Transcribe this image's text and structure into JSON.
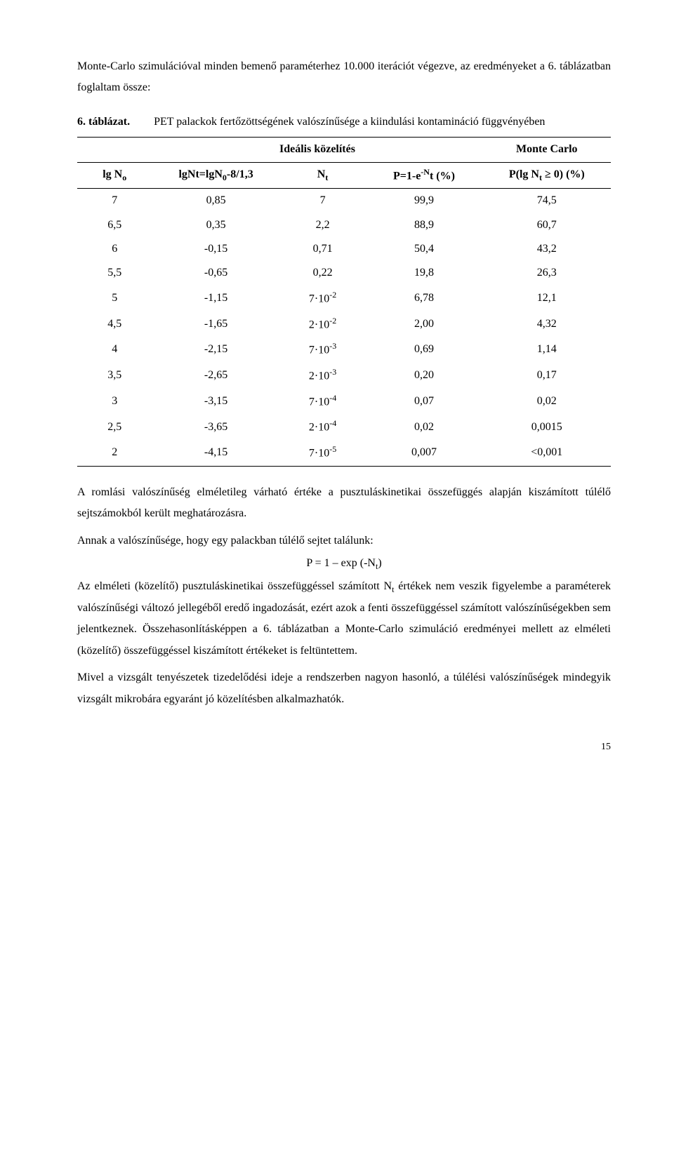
{
  "p1_a": "Monte-Carlo szimulációval minden bemenő paraméterhez 10.000 iterációt végezve, az eredményeket a 6. táblázatban foglaltam össze:",
  "caption_label": "6. táblázat.",
  "caption_text": "PET palackok fertőzöttségének valószínűsége a kiindulási kontamináció függvényében",
  "table": {
    "group_ideal": "Ideális közelítés",
    "group_mc": "Monte Carlo",
    "h_lgNo": "lg N",
    "h_lgNo_sub": "o",
    "h_lgNt": "lgNt=lgN",
    "h_lgNt_sub": "0",
    "h_lgNt_tail": "-8/1,3",
    "h_Nt": "N",
    "h_Nt_sub": "t",
    "h_P1": "P=1-e",
    "h_P1_sup": "-N",
    "h_P1_tail": "t  (%)",
    "h_Plg": "P(lg N",
    "h_Plg_sub": "t",
    "h_Plg_tail": " ≥ 0)  (%)",
    "rows": [
      {
        "c1": "7",
        "c2": "0,85",
        "c3": "7",
        "c4": "99,9",
        "c5": "74,5"
      },
      {
        "c1": "6,5",
        "c2": "0,35",
        "c3": "2,2",
        "c4": "88,9",
        "c5": "60,7"
      },
      {
        "c1": "6",
        "c2": "-0,15",
        "c3": "0,71",
        "c4": "50,4",
        "c5": "43,2"
      },
      {
        "c1": "5,5",
        "c2": "-0,65",
        "c3": "0,22",
        "c4": "19,8",
        "c5": "26,3"
      },
      {
        "c1": "5",
        "c2": "-1,15",
        "c3_base": "7·10",
        "c3_sup": "-2",
        "c4": "6,78",
        "c5": "12,1"
      },
      {
        "c1": "4,5",
        "c2": "-1,65",
        "c3_base": "2·10",
        "c3_sup": "-2",
        "c4": "2,00",
        "c5": "4,32"
      },
      {
        "c1": "4",
        "c2": "-2,15",
        "c3_base": "7·10",
        "c3_sup": "-3",
        "c4": "0,69",
        "c5": "1,14"
      },
      {
        "c1": "3,5",
        "c2": "-2,65",
        "c3_base": "2·10",
        "c3_sup": "-3",
        "c4": "0,20",
        "c5": "0,17"
      },
      {
        "c1": "3",
        "c2": "-3,15",
        "c3_base": "7·10",
        "c3_sup": "-4",
        "c4": "0,07",
        "c5": "0,02"
      },
      {
        "c1": "2,5",
        "c2": "-3,65",
        "c3_base": "2·10",
        "c3_sup": "-4",
        "c4": "0,02",
        "c5": "0,0015"
      },
      {
        "c1": "2",
        "c2": "-4,15",
        "c3_base": "7·10",
        "c3_sup": "-5",
        "c4": "0,007",
        "c5": "<0,001"
      }
    ]
  },
  "p2": "A romlási valószínűség elméletileg várható értéke a pusztuláskinetikai összefüggés alapján kiszámított túlélő sejtszámokból került meghatározásra.",
  "p3": "Annak a valószínűsége, hogy egy palackban túlélő sejtet találunk:",
  "eq_a": "P = 1 – exp (-N",
  "eq_sub": "t",
  "eq_b": ")",
  "p4_a": "Az elméleti (közelítő) pusztuláskinetikai összefüggéssel számított N",
  "p4_sub": "t",
  "p4_b": " értékek nem veszik figyelembe a paraméterek valószínűségi változó jellegéből eredő ingadozását, ezért azok a fenti összefüggéssel számított valószínűségekben sem jelentkeznek. Összehasonlításképpen a 6. táblázatban a Monte-Carlo szimuláció eredményei mellett az elméleti (közelítő) összefüggéssel kiszámított értékeket is feltüntettem.",
  "p5": "Mivel a vizsgált tenyészetek tizedelődési ideje a rendszerben nagyon hasonló, a túlélési valószínűségek mindegyik vizsgált mikrobára egyaránt jó közelítésben alkalmazhatók.",
  "page_num": "15"
}
